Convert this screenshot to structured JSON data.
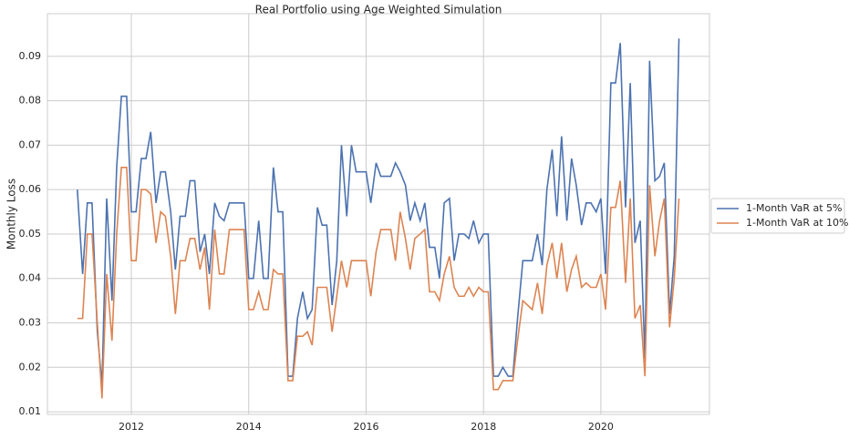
{
  "chart_data": {
    "type": "line",
    "title": "Real Portfolio using Age Weighted Simulation",
    "y_label": "Monthly Loss",
    "x": [
      2011.08,
      2011.17,
      2011.25,
      2011.33,
      2011.42,
      2011.5,
      2011.58,
      2011.67,
      2011.75,
      2011.83,
      2011.92,
      2012.0,
      2012.08,
      2012.17,
      2012.25,
      2012.33,
      2012.42,
      2012.5,
      2012.58,
      2012.67,
      2012.75,
      2012.83,
      2012.92,
      2013.0,
      2013.08,
      2013.17,
      2013.25,
      2013.33,
      2013.42,
      2013.5,
      2013.58,
      2013.67,
      2013.75,
      2013.83,
      2013.92,
      2014.0,
      2014.08,
      2014.17,
      2014.25,
      2014.33,
      2014.42,
      2014.5,
      2014.58,
      2014.67,
      2014.75,
      2014.83,
      2014.92,
      2015.0,
      2015.08,
      2015.17,
      2015.25,
      2015.33,
      2015.42,
      2015.5,
      2015.58,
      2015.67,
      2015.75,
      2015.83,
      2015.92,
      2016.0,
      2016.08,
      2016.17,
      2016.25,
      2016.33,
      2016.42,
      2016.5,
      2016.58,
      2016.67,
      2016.75,
      2016.83,
      2016.92,
      2017.0,
      2017.08,
      2017.17,
      2017.25,
      2017.33,
      2017.42,
      2017.5,
      2017.58,
      2017.67,
      2017.75,
      2017.83,
      2017.92,
      2018.0,
      2018.08,
      2018.17,
      2018.25,
      2018.33,
      2018.42,
      2018.5,
      2018.58,
      2018.67,
      2018.75,
      2018.83,
      2018.92,
      2019.0,
      2019.08,
      2019.17,
      2019.25,
      2019.33,
      2019.42,
      2019.5,
      2019.58,
      2019.67,
      2019.75,
      2019.83,
      2019.92,
      2020.0,
      2020.08,
      2020.17,
      2020.25,
      2020.33,
      2020.42,
      2020.5,
      2020.58,
      2020.67,
      2020.75,
      2020.83,
      2020.92,
      2021.0,
      2021.08,
      2021.17,
      2021.25,
      2021.33
    ],
    "series": [
      {
        "name": "1-Month VaR at 5%",
        "color": "#4c72b0",
        "values": [
          0.06,
          0.041,
          0.057,
          0.057,
          0.028,
          0.016,
          0.058,
          0.035,
          0.065,
          0.081,
          0.081,
          0.055,
          0.055,
          0.067,
          0.067,
          0.073,
          0.057,
          0.064,
          0.064,
          0.055,
          0.042,
          0.054,
          0.054,
          0.062,
          0.062,
          0.046,
          0.05,
          0.041,
          0.057,
          0.054,
          0.053,
          0.057,
          0.057,
          0.057,
          0.057,
          0.04,
          0.04,
          0.053,
          0.04,
          0.04,
          0.065,
          0.055,
          0.055,
          0.018,
          0.018,
          0.031,
          0.037,
          0.031,
          0.033,
          0.056,
          0.052,
          0.052,
          0.034,
          0.044,
          0.07,
          0.054,
          0.07,
          0.064,
          0.064,
          0.064,
          0.057,
          0.066,
          0.063,
          0.063,
          0.063,
          0.066,
          0.064,
          0.061,
          0.053,
          0.057,
          0.053,
          0.057,
          0.047,
          0.047,
          0.04,
          0.057,
          0.058,
          0.044,
          0.05,
          0.05,
          0.049,
          0.053,
          0.048,
          0.05,
          0.05,
          0.018,
          0.018,
          0.02,
          0.018,
          0.018,
          0.031,
          0.044,
          0.044,
          0.044,
          0.05,
          0.043,
          0.06,
          0.069,
          0.054,
          0.072,
          0.053,
          0.067,
          0.061,
          0.052,
          0.057,
          0.057,
          0.055,
          0.058,
          0.041,
          0.084,
          0.084,
          0.093,
          0.056,
          0.084,
          0.048,
          0.053,
          0.022,
          0.089,
          0.062,
          0.063,
          0.066,
          0.032,
          0.045,
          0.094
        ]
      },
      {
        "name": "1-Month VaR at 10%",
        "color": "#dd8452",
        "values": [
          0.031,
          0.031,
          0.05,
          0.05,
          0.03,
          0.013,
          0.041,
          0.026,
          0.05,
          0.065,
          0.065,
          0.044,
          0.044,
          0.06,
          0.06,
          0.059,
          0.048,
          0.055,
          0.054,
          0.045,
          0.032,
          0.044,
          0.044,
          0.049,
          0.049,
          0.042,
          0.047,
          0.033,
          0.051,
          0.041,
          0.041,
          0.051,
          0.051,
          0.051,
          0.051,
          0.033,
          0.033,
          0.037,
          0.033,
          0.033,
          0.042,
          0.041,
          0.041,
          0.017,
          0.017,
          0.027,
          0.027,
          0.028,
          0.025,
          0.038,
          0.038,
          0.038,
          0.028,
          0.036,
          0.044,
          0.038,
          0.044,
          0.044,
          0.044,
          0.044,
          0.036,
          0.046,
          0.051,
          0.051,
          0.051,
          0.044,
          0.055,
          0.049,
          0.042,
          0.049,
          0.05,
          0.051,
          0.037,
          0.037,
          0.035,
          0.041,
          0.045,
          0.038,
          0.036,
          0.036,
          0.038,
          0.036,
          0.038,
          0.037,
          0.037,
          0.015,
          0.015,
          0.017,
          0.017,
          0.017,
          0.026,
          0.035,
          0.034,
          0.033,
          0.039,
          0.032,
          0.043,
          0.048,
          0.04,
          0.048,
          0.037,
          0.042,
          0.045,
          0.038,
          0.039,
          0.038,
          0.038,
          0.041,
          0.033,
          0.056,
          0.056,
          0.062,
          0.039,
          0.058,
          0.031,
          0.034,
          0.018,
          0.061,
          0.045,
          0.053,
          0.058,
          0.029,
          0.04,
          0.058
        ]
      }
    ],
    "xlim": [
      2010.57,
      2021.85
    ],
    "xticks": [
      2012,
      2014,
      2016,
      2018,
      2020
    ],
    "ylim": [
      0.0094,
      0.0996
    ],
    "yticks": [
      0.01,
      0.02,
      0.03,
      0.04,
      0.05,
      0.06,
      0.07,
      0.08,
      0.09
    ],
    "grid": true,
    "legend": "right"
  }
}
